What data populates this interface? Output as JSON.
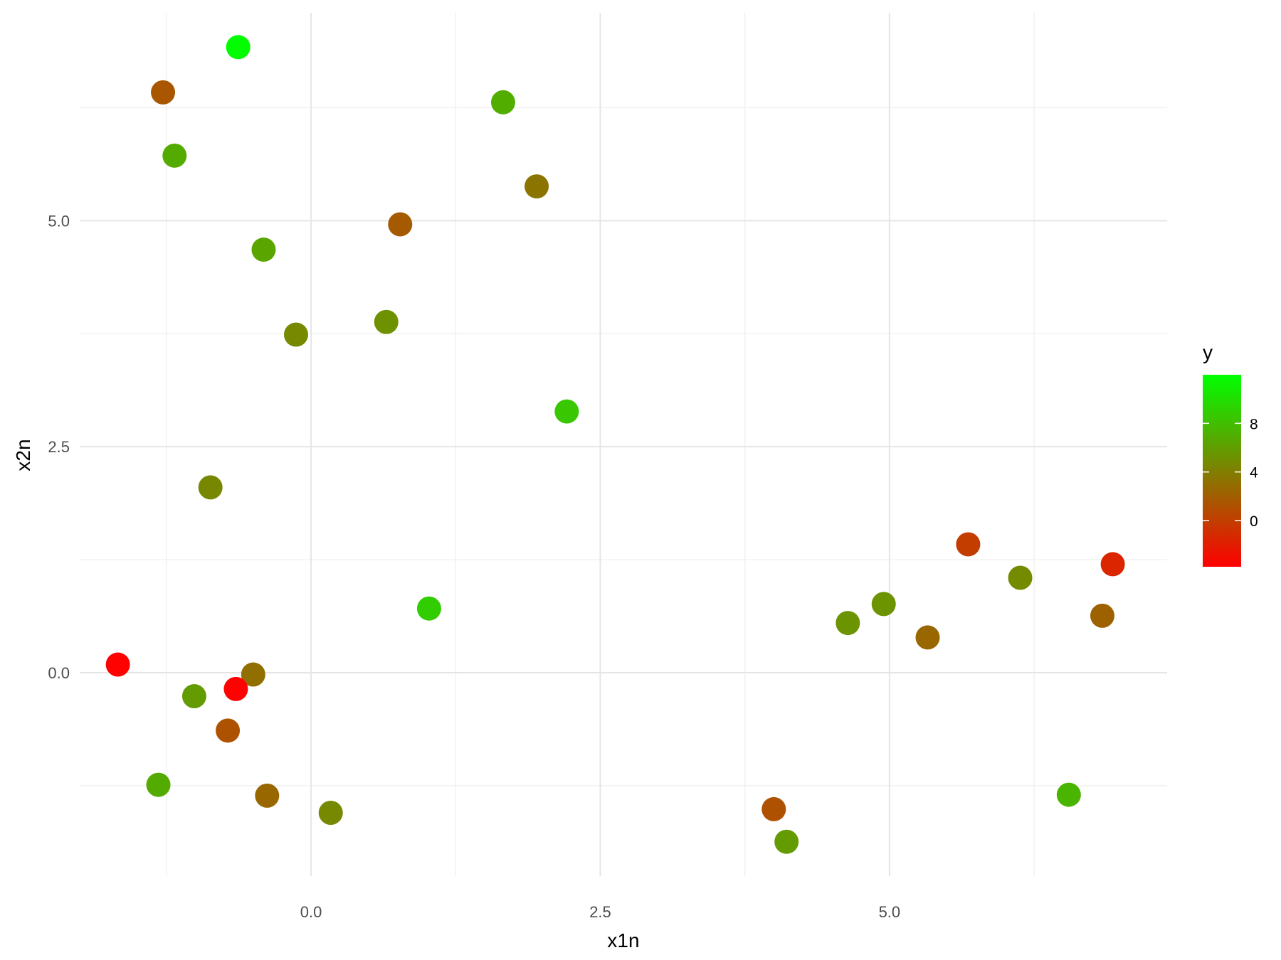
{
  "chart_data": {
    "type": "scatter",
    "title": "",
    "xlabel": "x1n",
    "ylabel": "x2n",
    "xlim": [
      -2.0,
      7.4
    ],
    "ylim": [
      -2.25,
      7.3
    ],
    "x_ticks": [
      0.0,
      2.5,
      5.0
    ],
    "x_tick_labels": [
      "0.0",
      "2.5",
      "5.0"
    ],
    "x_minor_ticks": [
      -1.25,
      1.25,
      3.75,
      6.25
    ],
    "y_ticks": [
      0.0,
      2.5,
      5.0
    ],
    "y_tick_labels": [
      "0.0",
      "2.5",
      "5.0"
    ],
    "y_minor_ticks": [
      -1.25,
      1.25,
      3.75,
      6.25
    ],
    "grid": true,
    "color_variable": "y",
    "color_scale": {
      "low_color": "#ff0000",
      "high_color": "#00ff00",
      "range": [
        -3.8,
        12.0
      ],
      "breaks": [
        0,
        4,
        8
      ],
      "break_labels": [
        "0",
        "4",
        "8"
      ]
    },
    "legend": {
      "title": "y",
      "position": "right"
    },
    "points": [
      {
        "x": -0.63,
        "y": 6.92,
        "value": 11.9
      },
      {
        "x": -1.28,
        "y": 6.42,
        "value": 1.5
      },
      {
        "x": -1.18,
        "y": 5.72,
        "value": 6.8
      },
      {
        "x": 1.66,
        "y": 6.31,
        "value": 7.0
      },
      {
        "x": 1.95,
        "y": 5.38,
        "value": 3.4
      },
      {
        "x": 0.77,
        "y": 4.96,
        "value": 1.8
      },
      {
        "x": -0.41,
        "y": 4.68,
        "value": 6.4
      },
      {
        "x": -0.13,
        "y": 3.74,
        "value": 4.7
      },
      {
        "x": 0.65,
        "y": 3.88,
        "value": 5.2
      },
      {
        "x": 2.21,
        "y": 2.89,
        "value": 8.5
      },
      {
        "x": -0.87,
        "y": 2.05,
        "value": 4.6
      },
      {
        "x": 1.02,
        "y": 0.71,
        "value": 8.9
      },
      {
        "x": -1.67,
        "y": 0.09,
        "value": -3.7
      },
      {
        "x": -0.5,
        "y": -0.02,
        "value": 3.0
      },
      {
        "x": -0.65,
        "y": -0.18,
        "value": -3.7
      },
      {
        "x": -1.01,
        "y": -0.26,
        "value": 5.8
      },
      {
        "x": -0.72,
        "y": -0.64,
        "value": 1.3
      },
      {
        "x": -1.32,
        "y": -1.24,
        "value": 6.8
      },
      {
        "x": -0.38,
        "y": -1.36,
        "value": 2.6
      },
      {
        "x": 0.17,
        "y": -1.55,
        "value": 4.7
      },
      {
        "x": 4.0,
        "y": -1.51,
        "value": 1.2
      },
      {
        "x": 4.11,
        "y": -1.87,
        "value": 5.8
      },
      {
        "x": 4.64,
        "y": 0.55,
        "value": 5.4
      },
      {
        "x": 4.95,
        "y": 0.76,
        "value": 5.4
      },
      {
        "x": 5.33,
        "y": 0.39,
        "value": 2.6
      },
      {
        "x": 5.68,
        "y": 1.42,
        "value": -0.1
      },
      {
        "x": 6.13,
        "y": 1.05,
        "value": 4.8
      },
      {
        "x": 6.55,
        "y": -1.35,
        "value": 7.4
      },
      {
        "x": 6.84,
        "y": 0.63,
        "value": 2.2
      },
      {
        "x": 6.93,
        "y": 1.2,
        "value": -1.6
      }
    ]
  }
}
